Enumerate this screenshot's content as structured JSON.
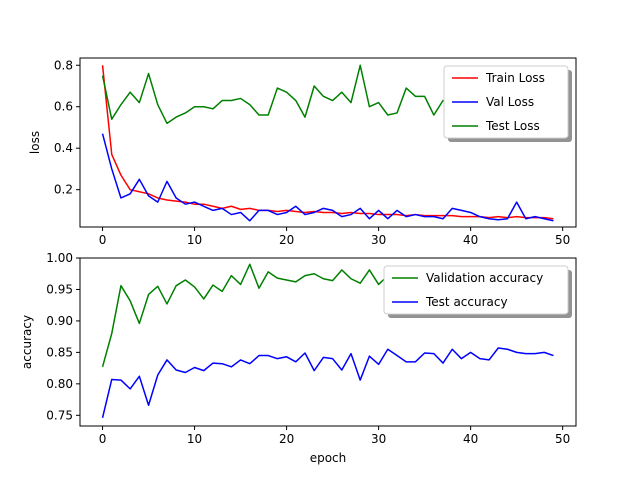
{
  "chart_data": [
    {
      "type": "line",
      "xlabel": "",
      "ylabel": "loss",
      "xlim": [
        -2.45,
        51.45
      ],
      "ylim": [
        0.02,
        0.835
      ],
      "xticks": [
        0,
        10,
        20,
        30,
        40,
        50
      ],
      "yticks": [
        0.2,
        0.4,
        0.6,
        0.8
      ],
      "xtick_labels": [
        "0",
        "10",
        "20",
        "30",
        "40",
        "50"
      ],
      "ytick_labels": [
        "0.2",
        "0.4",
        "0.6",
        "0.8"
      ],
      "legend_position": "top-right",
      "x": [
        0,
        1,
        2,
        3,
        4,
        5,
        6,
        7,
        8,
        9,
        10,
        11,
        12,
        13,
        14,
        15,
        16,
        17,
        18,
        19,
        20,
        21,
        22,
        23,
        24,
        25,
        26,
        27,
        28,
        29,
        30,
        31,
        32,
        33,
        34,
        35,
        36,
        37,
        38,
        39,
        40,
        41,
        42,
        43,
        44,
        45,
        46,
        47,
        48,
        49
      ],
      "series": [
        {
          "name": "Train Loss",
          "color": "#ff0000",
          "values": [
            0.8,
            0.37,
            0.27,
            0.2,
            0.19,
            0.18,
            0.16,
            0.15,
            0.145,
            0.14,
            0.13,
            0.13,
            0.12,
            0.11,
            0.12,
            0.105,
            0.11,
            0.1,
            0.1,
            0.095,
            0.1,
            0.095,
            0.09,
            0.095,
            0.09,
            0.09,
            0.085,
            0.09,
            0.085,
            0.085,
            0.08,
            0.08,
            0.08,
            0.075,
            0.08,
            0.075,
            0.075,
            0.075,
            0.075,
            0.07,
            0.07,
            0.07,
            0.065,
            0.07,
            0.065,
            0.07,
            0.065,
            0.065,
            0.065,
            0.06
          ]
        },
        {
          "name": "Val Loss",
          "color": "#0000ff",
          "values": [
            0.47,
            0.3,
            0.16,
            0.18,
            0.25,
            0.17,
            0.14,
            0.24,
            0.16,
            0.13,
            0.14,
            0.12,
            0.1,
            0.11,
            0.08,
            0.09,
            0.05,
            0.1,
            0.1,
            0.08,
            0.09,
            0.12,
            0.08,
            0.09,
            0.11,
            0.1,
            0.07,
            0.08,
            0.11,
            0.06,
            0.1,
            0.06,
            0.1,
            0.07,
            0.08,
            0.07,
            0.07,
            0.06,
            0.11,
            0.1,
            0.09,
            0.07,
            0.06,
            0.055,
            0.06,
            0.14,
            0.06,
            0.07,
            0.06,
            0.05
          ]
        },
        {
          "name": "Test Loss",
          "color": "#008000",
          "values": [
            0.75,
            0.54,
            0.61,
            0.67,
            0.62,
            0.76,
            0.61,
            0.52,
            0.55,
            0.57,
            0.6,
            0.6,
            0.59,
            0.63,
            0.63,
            0.64,
            0.61,
            0.56,
            0.56,
            0.69,
            0.67,
            0.63,
            0.55,
            0.7,
            0.65,
            0.63,
            0.67,
            0.62,
            0.8,
            0.6,
            0.62,
            0.56,
            0.57,
            0.69,
            0.65,
            0.65,
            0.56,
            0.63,
            0.62,
            0.74,
            0.68,
            0.68,
            0.69,
            0.67,
            0.67,
            0.72,
            0.74,
            0.64,
            0.67,
            0.66
          ]
        }
      ]
    },
    {
      "type": "line",
      "xlabel": "epoch",
      "ylabel": "accuracy",
      "xlim": [
        -2.45,
        51.45
      ],
      "ylim": [
        0.733,
        1.0
      ],
      "xticks": [
        0,
        10,
        20,
        30,
        40,
        50
      ],
      "yticks": [
        0.75,
        0.8,
        0.85,
        0.9,
        0.95,
        1.0
      ],
      "xtick_labels": [
        "0",
        "10",
        "20",
        "30",
        "40",
        "50"
      ],
      "ytick_labels": [
        "0.75",
        "0.80",
        "0.85",
        "0.90",
        "0.95",
        "1.00"
      ],
      "legend_position": "top-right",
      "x": [
        0,
        1,
        2,
        3,
        4,
        5,
        6,
        7,
        8,
        9,
        10,
        11,
        12,
        13,
        14,
        15,
        16,
        17,
        18,
        19,
        20,
        21,
        22,
        23,
        24,
        25,
        26,
        27,
        28,
        29,
        30,
        31,
        32,
        33,
        34,
        35,
        36,
        37,
        38,
        39,
        40,
        41,
        42,
        43,
        44,
        45,
        46,
        47,
        48,
        49
      ],
      "series": [
        {
          "name": "Validation accuracy",
          "color": "#008000",
          "values": [
            0.827,
            0.88,
            0.956,
            0.932,
            0.896,
            0.942,
            0.955,
            0.927,
            0.956,
            0.965,
            0.954,
            0.935,
            0.957,
            0.947,
            0.972,
            0.958,
            0.99,
            0.952,
            0.978,
            0.968,
            0.965,
            0.962,
            0.972,
            0.975,
            0.967,
            0.964,
            0.981,
            0.967,
            0.96,
            0.981,
            0.958,
            0.972,
            0.978,
            0.985,
            0.98,
            0.982,
            0.978,
            0.975,
            0.983,
            0.98,
            0.978,
            0.98,
            0.985,
            0.982,
            0.98,
            0.978,
            0.982,
            0.984,
            0.98,
            0.978
          ]
        },
        {
          "name": "Test accuracy",
          "color": "#0000ff",
          "values": [
            0.746,
            0.807,
            0.806,
            0.792,
            0.812,
            0.766,
            0.814,
            0.838,
            0.822,
            0.818,
            0.826,
            0.821,
            0.833,
            0.832,
            0.827,
            0.838,
            0.832,
            0.845,
            0.845,
            0.84,
            0.843,
            0.835,
            0.849,
            0.821,
            0.842,
            0.84,
            0.822,
            0.848,
            0.806,
            0.844,
            0.831,
            0.855,
            0.845,
            0.835,
            0.835,
            0.849,
            0.848,
            0.833,
            0.855,
            0.84,
            0.85,
            0.84,
            0.838,
            0.857,
            0.855,
            0.85,
            0.848,
            0.848,
            0.85,
            0.845
          ]
        }
      ]
    }
  ]
}
